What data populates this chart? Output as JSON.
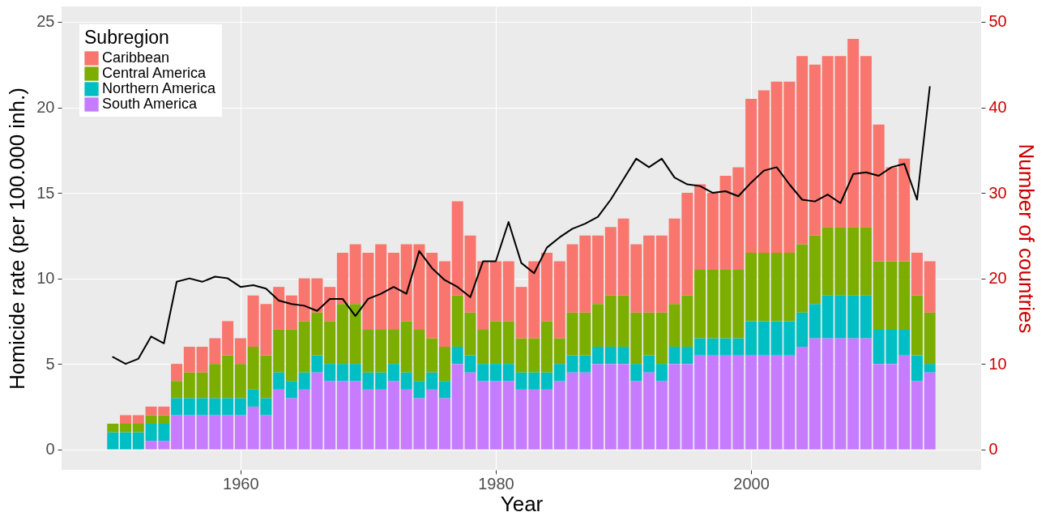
{
  "chart_data": {
    "type": "bar",
    "stacked": true,
    "xlabel": "Year",
    "ylabel": "Homicide rate (per 100.000 inh.)",
    "y2label": "Number of countries",
    "legend_title": "Subregion",
    "legend": "top left",
    "grid": true,
    "x": [
      1950,
      1951,
      1952,
      1953,
      1954,
      1955,
      1956,
      1957,
      1958,
      1959,
      1960,
      1961,
      1962,
      1963,
      1964,
      1965,
      1966,
      1967,
      1968,
      1969,
      1970,
      1971,
      1972,
      1973,
      1974,
      1975,
      1976,
      1977,
      1978,
      1979,
      1980,
      1981,
      1982,
      1983,
      1984,
      1985,
      1986,
      1987,
      1988,
      1989,
      1990,
      1991,
      1992,
      1993,
      1994,
      1995,
      1996,
      1997,
      1998,
      1999,
      2000,
      2001,
      2002,
      2003,
      2004,
      2005,
      2006,
      2007,
      2008,
      2009,
      2010,
      2011,
      2012,
      2013,
      2014
    ],
    "xlim": [
      1946.3,
      2017.7
    ],
    "xticks": [
      1960,
      1980,
      2000
    ],
    "ylim": [
      -1.2,
      25.9
    ],
    "yticks": [
      0,
      5,
      10,
      15,
      20,
      25
    ],
    "y2lim": [
      -2.4,
      51.8
    ],
    "y2ticks": [
      0,
      10,
      20,
      30,
      40,
      50
    ],
    "series": [
      {
        "name": "South America",
        "color": "#c77cff",
        "axis": "y2",
        "values": [
          0,
          0,
          0,
          1,
          1,
          4,
          4,
          4,
          4,
          4,
          4,
          5,
          4,
          7,
          6,
          7,
          9,
          8,
          8,
          8,
          7,
          7,
          8,
          7,
          6,
          7,
          6,
          10,
          9,
          8,
          8,
          8,
          7,
          7,
          7,
          8,
          9,
          9,
          10,
          10,
          10,
          8,
          9,
          8,
          10,
          10,
          11,
          11,
          11,
          11,
          11,
          11,
          11,
          11,
          12,
          13,
          13,
          13,
          13,
          13,
          10,
          10,
          11,
          8,
          9
        ]
      },
      {
        "name": "Northern America",
        "color": "#00bfc4",
        "axis": "y2",
        "values": [
          2,
          2,
          2,
          2,
          2,
          2,
          2,
          2,
          2,
          2,
          2,
          2,
          2,
          2,
          2,
          2,
          2,
          2,
          2,
          2,
          2,
          2,
          2,
          2,
          2,
          2,
          2,
          2,
          2,
          2,
          2,
          2,
          2,
          2,
          2,
          2,
          2,
          2,
          2,
          2,
          2,
          2,
          2,
          2,
          2,
          2,
          2,
          2,
          2,
          2,
          4,
          4,
          4,
          4,
          4,
          4,
          5,
          5,
          5,
          5,
          4,
          4,
          3,
          3,
          1
        ]
      },
      {
        "name": "Central America",
        "color": "#7cae00",
        "axis": "y2",
        "values": [
          1,
          1,
          1,
          1,
          1,
          2,
          3,
          3,
          4,
          5,
          4,
          5,
          5,
          5,
          6,
          6,
          5,
          5,
          7,
          7,
          5,
          5,
          4,
          6,
          6,
          4,
          4,
          6,
          5,
          4,
          5,
          5,
          4,
          4,
          6,
          3,
          5,
          5,
          5,
          6,
          6,
          6,
          5,
          6,
          5,
          6,
          8,
          8,
          8,
          8,
          8,
          8,
          8,
          8,
          8,
          8,
          8,
          8,
          8,
          8,
          8,
          8,
          8,
          7,
          6
        ]
      },
      {
        "name": "Caribbean",
        "color": "#f8766d",
        "axis": "y2",
        "values": [
          0,
          1,
          1,
          1,
          1,
          2,
          3,
          3,
          3,
          4,
          3,
          6,
          6,
          5,
          4,
          5,
          4,
          4,
          6,
          7,
          9,
          10,
          9,
          9,
          10,
          10,
          10,
          11,
          9,
          8,
          7,
          7,
          6,
          9,
          8,
          9,
          8,
          9,
          8,
          8,
          9,
          8,
          9,
          9,
          10,
          12,
          10,
          9,
          11,
          12,
          18,
          19,
          20,
          20,
          22,
          20,
          20,
          20,
          22,
          20,
          16,
          11,
          12,
          5,
          6
        ]
      },
      {
        "type": "line",
        "color": "#000000",
        "axis": "y",
        "values": [
          5.4,
          5.0,
          5.3,
          6.6,
          6.2,
          9.8,
          10.0,
          9.8,
          10.1,
          10.0,
          9.5,
          9.6,
          9.4,
          8.7,
          8.5,
          8.4,
          8.1,
          8.8,
          8.8,
          7.8,
          8.8,
          9.1,
          9.5,
          9.1,
          11.6,
          10.6,
          9.9,
          9.5,
          8.9,
          11.0,
          11.0,
          13.3,
          10.9,
          10.3,
          11.8,
          12.4,
          12.9,
          13.2,
          13.6,
          14.6,
          15.8,
          17.0,
          16.5,
          17.0,
          15.9,
          15.5,
          15.4,
          15.0,
          15.1,
          14.8,
          15.6,
          16.3,
          16.5,
          15.5,
          14.6,
          14.5,
          14.9,
          14.4,
          16.1,
          16.2,
          16.0,
          16.5,
          16.7,
          14.6,
          21.2
        ]
      }
    ]
  }
}
